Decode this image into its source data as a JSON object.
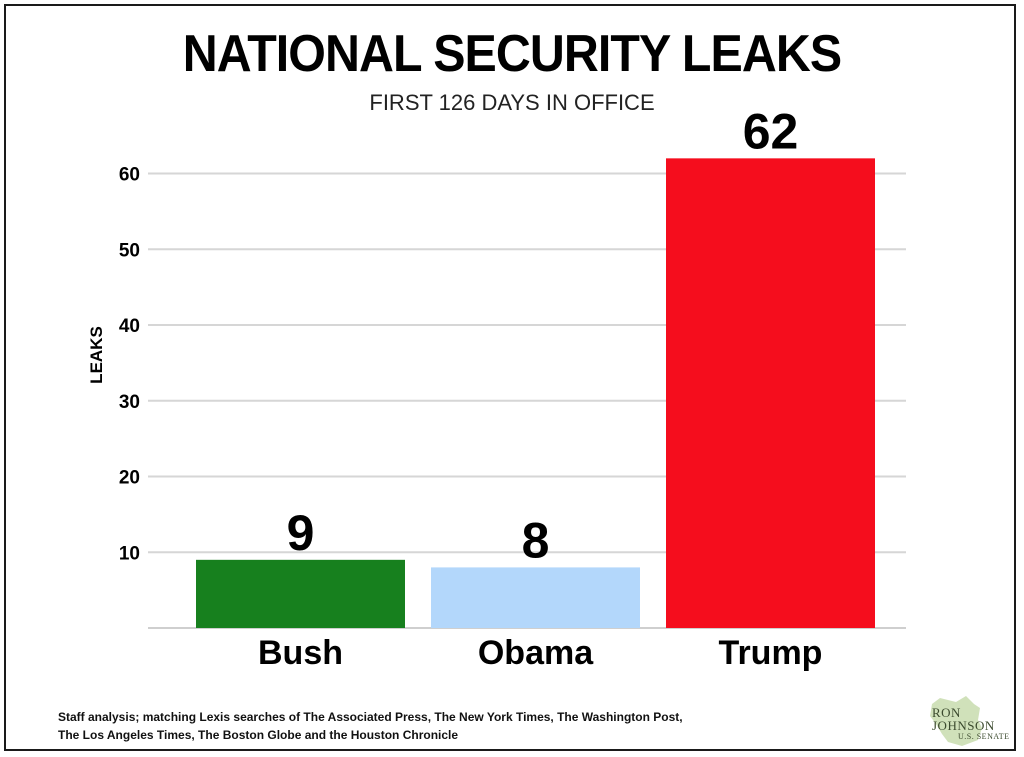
{
  "chart_data": {
    "type": "bar",
    "title": "NATIONAL SECURITY LEAKS",
    "subtitle": "FIRST 126 DAYS IN OFFICE",
    "ylabel": "LEAKS",
    "xlabel": "",
    "categories": [
      "Bush",
      "Obama",
      "Trump"
    ],
    "values": [
      9,
      8,
      62
    ],
    "data_labels": [
      "9",
      "8",
      "62"
    ],
    "bar_colors": [
      "#17801e",
      "#b3d7fb",
      "#f50d1d"
    ],
    "ylim": [
      0,
      62
    ],
    "yticks": [
      10,
      20,
      30,
      40,
      50,
      60
    ],
    "ytick_labels": [
      "10",
      "20",
      "30",
      "40",
      "50",
      "60"
    ],
    "grid": true,
    "legend": "none"
  },
  "footnote": {
    "line1": "Staff analysis; matching Lexis searches of The Associated Press, The New York Times, The Washington Post,",
    "line2": "The Los Angeles Times, The Boston Globe and the Houston Chronicle"
  },
  "logo": {
    "name_line1": "RON",
    "name_line2": "JOHNSON",
    "subtitle": "U.S. SENATE",
    "color": "#3b4a2e",
    "shape_color": "#c8dcae"
  }
}
